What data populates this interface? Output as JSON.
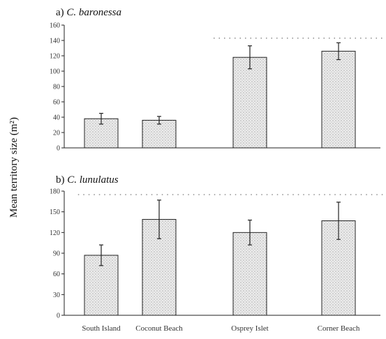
{
  "shared": {
    "ylabel": "Mean territory size (m²)",
    "categories": [
      "South Island",
      "Coconut Beach",
      "Osprey Islet",
      "Corner Beach"
    ],
    "bar_fill": "#e3e3e3",
    "bar_stroke": "#222222",
    "error_color": "#222222",
    "dotted_line_color": "#555555"
  },
  "chart_data": [
    {
      "type": "bar",
      "title_prefix": "a) ",
      "title_species": "C. baronessa",
      "categories": [
        "South Island",
        "Coconut Beach",
        "Osprey Islet",
        "Corner Beach"
      ],
      "values": [
        38,
        36,
        118,
        126
      ],
      "errors": [
        7,
        5,
        15,
        11
      ],
      "ylim": [
        0,
        160
      ],
      "yticks": [
        0,
        20,
        40,
        60,
        80,
        100,
        120,
        140,
        160
      ],
      "ytick_labels": [
        "0",
        "20",
        "40",
        "60",
        "80",
        "100",
        "120",
        "140",
        "160"
      ],
      "reference_line": {
        "y": 143,
        "x_from": 1.6,
        "x_to": 3.5
      }
    },
    {
      "type": "bar",
      "title_prefix": "b) ",
      "title_species": "C. lunulatus",
      "categories": [
        "South Island",
        "Coconut Beach",
        "Osprey Islet",
        "Corner Beach"
      ],
      "values": [
        87,
        139,
        120,
        137
      ],
      "errors": [
        15,
        28,
        18,
        27
      ],
      "ylim": [
        0,
        180
      ],
      "yticks": [
        0,
        30,
        60,
        90,
        120,
        150,
        180
      ],
      "ytick_labels": [
        "0",
        "30",
        "60",
        "90",
        "120",
        "150",
        "180"
      ],
      "reference_line": {
        "y": 175,
        "x_from": -0.4,
        "x_to": 3.55
      }
    }
  ]
}
